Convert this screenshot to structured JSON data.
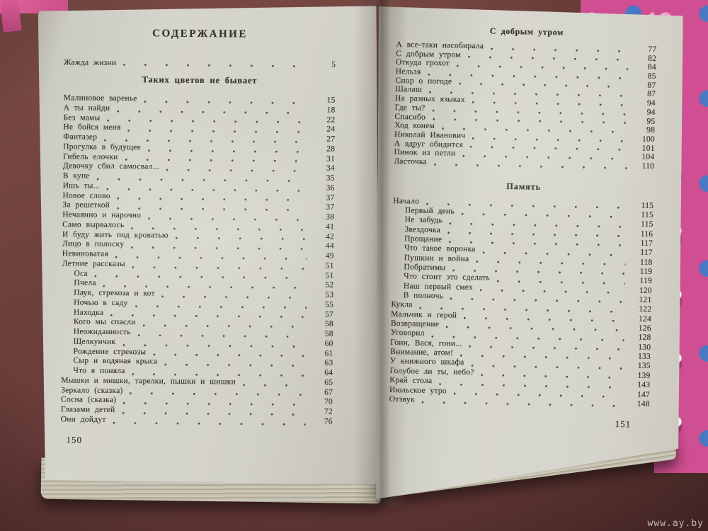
{
  "photo": {
    "watermark": "www.ay.by",
    "colors": {
      "table_surface": "#6e403c",
      "page_paper": "#d6d5cd",
      "cover_pink": "#cf4f92",
      "cover_blue": "#4a78c4",
      "cover_green_stem": "#8fa55c",
      "ink": "#33322c"
    }
  },
  "left_page": {
    "page_number": "150",
    "title": "СОДЕРЖАНИЕ",
    "intro_entries": [
      {
        "title": "Жажда жизни",
        "page": "5"
      }
    ],
    "section_header": "Таких цветов не бывает",
    "entries": [
      {
        "title": "Малиновое варенье",
        "page": "15"
      },
      {
        "title": "А ты найди",
        "page": "18"
      },
      {
        "title": "Без мамы",
        "page": "22"
      },
      {
        "title": "Не бойся меня",
        "page": "24"
      },
      {
        "title": "Фантазер",
        "page": "27"
      },
      {
        "title": "Прогулка в будущее",
        "page": "28"
      },
      {
        "title": "Гибель елочки",
        "page": "31"
      },
      {
        "title": "Девочку сбил самосвал...",
        "page": "34"
      },
      {
        "title": "В купе",
        "page": "35"
      },
      {
        "title": "Ишь ты...",
        "page": "36"
      },
      {
        "title": "Новое слово",
        "page": "37"
      },
      {
        "title": "За решеткой",
        "page": "37"
      },
      {
        "title": "Нечаянно и нарочно",
        "page": "38"
      },
      {
        "title": "Само вырвалось",
        "page": "41"
      },
      {
        "title": "И буду жить под кроватью",
        "page": "42"
      },
      {
        "title": "Лицо в полоску",
        "page": "44"
      },
      {
        "title": "Невиноватая",
        "page": "49"
      },
      {
        "title": "Летние рассказы",
        "page": "51"
      },
      {
        "title": "Оса",
        "page": "51",
        "indent": true
      },
      {
        "title": "Пчела",
        "page": "52",
        "indent": true
      },
      {
        "title": "Паук, стрекоза и кот",
        "page": "53",
        "indent": true
      },
      {
        "title": "Ночью в саду",
        "page": "55",
        "indent": true
      },
      {
        "title": "Находка",
        "page": "57",
        "indent": true
      },
      {
        "title": "Кого мы спасли",
        "page": "58",
        "indent": true
      },
      {
        "title": "Неожиданность",
        "page": "58",
        "indent": true
      },
      {
        "title": "Щелкунчик",
        "page": "60",
        "indent": true
      },
      {
        "title": "Рождение стрекозы",
        "page": "61",
        "indent": true
      },
      {
        "title": "Сыр и водяная крыса",
        "page": "63",
        "indent": true
      },
      {
        "title": "Что я поняла",
        "page": "64",
        "indent": true
      },
      {
        "title": "Мышки и мишки, тарелки, пышки и шишки",
        "page": "65"
      },
      {
        "title": "Зеркало (сказка)",
        "page": "67"
      },
      {
        "title": "Сосна (сказка)",
        "page": "70"
      },
      {
        "title": "Глазами детей",
        "page": "72"
      },
      {
        "title": "Они дойдут",
        "page": "76"
      }
    ]
  },
  "right_page": {
    "page_number": "151",
    "running_head": "С добрым утром",
    "sections": [
      {
        "header": "",
        "entries": [
          {
            "title": "А все-таки насобирала",
            "page": "77"
          },
          {
            "title": "С добрым утром",
            "page": "82"
          },
          {
            "title": "Откуда грохот",
            "page": "84"
          },
          {
            "title": "Нельзя",
            "page": "85"
          },
          {
            "title": "Спор о погоде",
            "page": "87"
          },
          {
            "title": "Шалаш",
            "page": "87"
          },
          {
            "title": "На разных языках",
            "page": "94"
          },
          {
            "title": "Где ты?",
            "page": "94"
          },
          {
            "title": "Спасибо",
            "page": "95"
          },
          {
            "title": "Ход конем",
            "page": "98"
          },
          {
            "title": "Николай Иванович",
            "page": "100"
          },
          {
            "title": "А вдруг обидится",
            "page": "101"
          },
          {
            "title": "Пинок из петли",
            "page": "104"
          },
          {
            "title": "Ласточка",
            "page": "110"
          }
        ]
      },
      {
        "header": "Память",
        "entries": [
          {
            "title": "Начало",
            "page": "115"
          },
          {
            "title": "Первый день",
            "page": "115",
            "indent": true
          },
          {
            "title": "Не забудь",
            "page": "115",
            "indent": true
          },
          {
            "title": "Звездочка",
            "page": "116",
            "indent": true
          },
          {
            "title": "Прощание",
            "page": "117",
            "indent": true
          },
          {
            "title": "Что такое воронка",
            "page": "117",
            "indent": true
          },
          {
            "title": "Пушкин и война",
            "page": "118",
            "indent": true
          },
          {
            "title": "Побратимы",
            "page": "119",
            "indent": true
          },
          {
            "title": "Что стоит это сделать",
            "page": "119",
            "indent": true
          },
          {
            "title": "Наш первый смех",
            "page": "120",
            "indent": true
          },
          {
            "title": "В полночь",
            "page": "121",
            "indent": true
          },
          {
            "title": "Кукла",
            "page": "122"
          },
          {
            "title": "Мальчик и герой",
            "page": "124"
          },
          {
            "title": "Возвращение",
            "page": "126"
          },
          {
            "title": "Уговорил",
            "page": "128"
          },
          {
            "title": "Гони, Вася, гони...",
            "page": "130"
          },
          {
            "title": "Внимание, атом!",
            "page": "133"
          },
          {
            "title": "У книжного шкафа",
            "page": "135"
          },
          {
            "title": "Голубое ли ты, небо?",
            "page": "139"
          },
          {
            "title": "Край стола",
            "page": "143"
          },
          {
            "title": "Июльское утро",
            "page": "147"
          },
          {
            "title": "Отзвук",
            "page": "148"
          }
        ]
      }
    ]
  }
}
